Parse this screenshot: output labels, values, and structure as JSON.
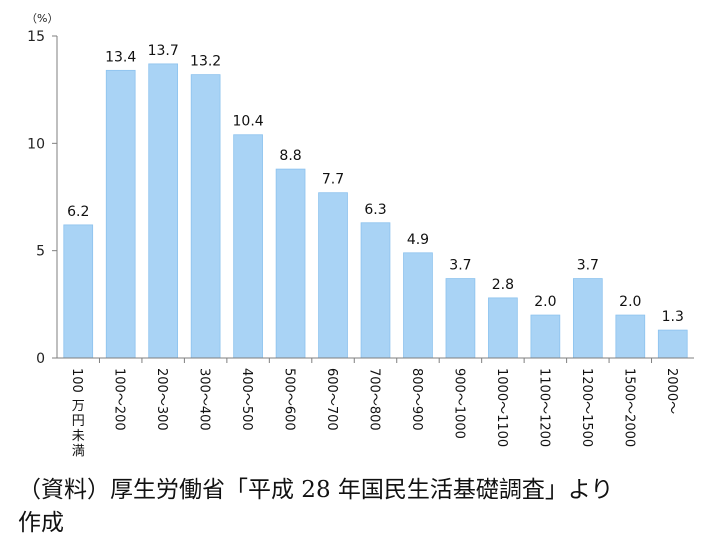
{
  "chart_data": {
    "type": "bar",
    "unit": "（%）",
    "categories": [
      "100万円未満",
      "100～200",
      "200～300",
      "300～400",
      "400～500",
      "500～600",
      "600～700",
      "700～800",
      "800～900",
      "900～1000",
      "1000～1100",
      "1100～1200",
      "1200～1500",
      "1500～2000",
      "2000～"
    ],
    "values": [
      6.2,
      13.4,
      13.7,
      13.2,
      10.4,
      8.8,
      7.7,
      6.3,
      4.9,
      3.7,
      2.8,
      2.0,
      3.7,
      2.0,
      1.3
    ],
    "value_labels": [
      "6.2",
      "13.4",
      "13.7",
      "13.2",
      "10.4",
      "8.8",
      "7.7",
      "6.3",
      "4.9",
      "3.7",
      "2.8",
      "2.0",
      "3.7",
      "2.0",
      "1.3"
    ],
    "ylim": [
      0,
      15
    ],
    "yticks": [
      0,
      5,
      10,
      15
    ],
    "bar_color": "#a9d3f5",
    "bar_edge_color": "#8cc2ee",
    "axis_color": "#7f7f7f",
    "grid": false,
    "legend": "none"
  },
  "note": {
    "text": "（資料）厚生労働省「平成 28 年国民生活基礎調査」より\n作成"
  }
}
